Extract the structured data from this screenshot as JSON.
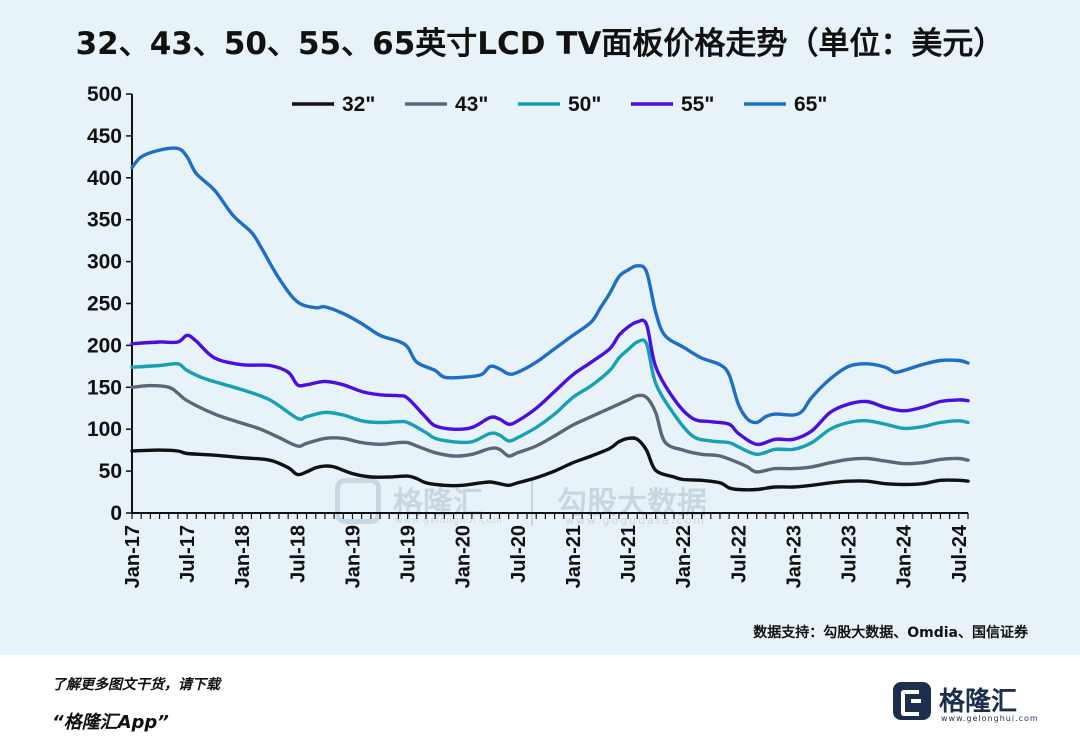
{
  "page": {
    "title": "32、43、50、55、65英寸LCD TV面板价格走势（单位：美元）",
    "source": "数据支持：勾股大数据、Omdia、国信证券",
    "footer_line1": "了解更多图文干货，请下载",
    "footer_line2": "“格隆汇App”",
    "logo_name": "格隆汇",
    "logo_url": "www.gelonghui.com",
    "watermark_name1": "格隆汇",
    "watermark_url1": "www.gelonghui.com",
    "watermark_name2": "勾股大数据",
    "watermark_url2": "www.gogudata.com",
    "background_color": "#e8f3f9"
  },
  "chart_data": {
    "type": "line",
    "title": "32、43、50、55、65英寸LCD TV面板价格走势（单位：美元）",
    "xlabel": "",
    "ylabel": "",
    "ylim": [
      0,
      500
    ],
    "yticks": [
      0,
      50,
      100,
      150,
      200,
      250,
      300,
      350,
      400,
      450,
      500
    ],
    "xticks": [
      "Jan-17",
      "Jul-17",
      "Jan-18",
      "Jul-18",
      "Jan-19",
      "Jul-19",
      "Jan-20",
      "Jul-20",
      "Jan-21",
      "Jul-21",
      "Jan-22",
      "Jul-22",
      "Jan-23",
      "Jul-23",
      "Jan-24",
      "Jul-24"
    ],
    "x_start": "Jan-17",
    "x_end": "Aug-24",
    "grid": false,
    "legend_position": "top",
    "series": [
      {
        "name": "32\"",
        "color": "#111111",
        "points": [
          [
            "Jan-17",
            74
          ],
          [
            "Apr-17",
            75
          ],
          [
            "Jun-17",
            74
          ],
          [
            "Jul-17",
            71
          ],
          [
            "Oct-17",
            69
          ],
          [
            "Jan-18",
            66
          ],
          [
            "Apr-18",
            63
          ],
          [
            "Jun-18",
            54
          ],
          [
            "Jul-18",
            46
          ],
          [
            "Aug-18",
            49
          ],
          [
            "Sep-18",
            54
          ],
          [
            "Oct-18",
            56
          ],
          [
            "Nov-18",
            55
          ],
          [
            "Jan-19",
            47
          ],
          [
            "Mar-19",
            43
          ],
          [
            "May-19",
            43
          ],
          [
            "Jul-19",
            44
          ],
          [
            "Aug-19",
            41
          ],
          [
            "Sep-19",
            36
          ],
          [
            "Nov-19",
            33
          ],
          [
            "Jan-20",
            33
          ],
          [
            "Mar-20",
            36
          ],
          [
            "Apr-20",
            37
          ],
          [
            "May-20",
            35
          ],
          [
            "Jun-20",
            33
          ],
          [
            "Jul-20",
            36
          ],
          [
            "Sep-20",
            42
          ],
          [
            "Nov-20",
            50
          ],
          [
            "Jan-21",
            60
          ],
          [
            "Mar-21",
            68
          ],
          [
            "May-21",
            77
          ],
          [
            "Jun-21",
            85
          ],
          [
            "Jul-21",
            89
          ],
          [
            "Aug-21",
            88
          ],
          [
            "Sep-21",
            75
          ],
          [
            "Oct-21",
            51
          ],
          [
            "Dec-21",
            43
          ],
          [
            "Jan-22",
            40
          ],
          [
            "Mar-22",
            39
          ],
          [
            "May-22",
            36
          ],
          [
            "Jun-22",
            30
          ],
          [
            "Jul-22",
            28
          ],
          [
            "Sep-22",
            28
          ],
          [
            "Nov-22",
            31
          ],
          [
            "Jan-23",
            31
          ],
          [
            "Mar-23",
            33
          ],
          [
            "May-23",
            36
          ],
          [
            "Jul-23",
            38
          ],
          [
            "Sep-23",
            38
          ],
          [
            "Nov-23",
            35
          ],
          [
            "Jan-24",
            34
          ],
          [
            "Mar-24",
            35
          ],
          [
            "May-24",
            39
          ],
          [
            "Jul-24",
            39
          ],
          [
            "Aug-24",
            38
          ]
        ]
      },
      {
        "name": "43\"",
        "color": "#5c6678",
        "points": [
          [
            "Jan-17",
            150
          ],
          [
            "Mar-17",
            152
          ],
          [
            "May-17",
            150
          ],
          [
            "Jun-17",
            143
          ],
          [
            "Jul-17",
            134
          ],
          [
            "Oct-17",
            118
          ],
          [
            "Jan-18",
            107
          ],
          [
            "Mar-18",
            100
          ],
          [
            "May-18",
            90
          ],
          [
            "Jul-18",
            80
          ],
          [
            "Aug-18",
            83
          ],
          [
            "Oct-18",
            89
          ],
          [
            "Dec-18",
            89
          ],
          [
            "Feb-19",
            84
          ],
          [
            "Apr-19",
            82
          ],
          [
            "Jun-19",
            84
          ],
          [
            "Jul-19",
            84
          ],
          [
            "Aug-19",
            80
          ],
          [
            "Oct-19",
            72
          ],
          [
            "Dec-19",
            68
          ],
          [
            "Feb-20",
            70
          ],
          [
            "Apr-20",
            77
          ],
          [
            "May-20",
            76
          ],
          [
            "Jun-20",
            68
          ],
          [
            "Jul-20",
            72
          ],
          [
            "Sep-20",
            80
          ],
          [
            "Nov-20",
            92
          ],
          [
            "Jan-21",
            105
          ],
          [
            "Mar-21",
            115
          ],
          [
            "May-21",
            125
          ],
          [
            "Jul-21",
            135
          ],
          [
            "Aug-21",
            140
          ],
          [
            "Sep-21",
            138
          ],
          [
            "Oct-21",
            120
          ],
          [
            "Nov-21",
            85
          ],
          [
            "Jan-22",
            75
          ],
          [
            "Mar-22",
            70
          ],
          [
            "May-22",
            68
          ],
          [
            "Jul-22",
            60
          ],
          [
            "Aug-22",
            55
          ],
          [
            "Sep-22",
            49
          ],
          [
            "Nov-22",
            53
          ],
          [
            "Jan-23",
            53
          ],
          [
            "Mar-23",
            55
          ],
          [
            "May-23",
            60
          ],
          [
            "Jul-23",
            64
          ],
          [
            "Sep-23",
            65
          ],
          [
            "Nov-23",
            62
          ],
          [
            "Jan-24",
            59
          ],
          [
            "Mar-24",
            60
          ],
          [
            "May-24",
            64
          ],
          [
            "Jul-24",
            65
          ],
          [
            "Aug-24",
            63
          ]
        ]
      },
      {
        "name": "50\"",
        "color": "#16a0b6",
        "points": [
          [
            "Jan-17",
            174
          ],
          [
            "Apr-17",
            176
          ],
          [
            "Jun-17",
            178
          ],
          [
            "Jul-17",
            170
          ],
          [
            "Sep-17",
            160
          ],
          [
            "Jan-18",
            147
          ],
          [
            "Apr-18",
            135
          ],
          [
            "Jul-18",
            113
          ],
          [
            "Aug-18",
            115
          ],
          [
            "Oct-18",
            120
          ],
          [
            "Dec-18",
            117
          ],
          [
            "Feb-19",
            110
          ],
          [
            "Apr-19",
            108
          ],
          [
            "Jun-19",
            109
          ],
          [
            "Jul-19",
            108
          ],
          [
            "Sep-19",
            96
          ],
          [
            "Oct-19",
            89
          ],
          [
            "Dec-19",
            85
          ],
          [
            "Feb-20",
            85
          ],
          [
            "Apr-20",
            95
          ],
          [
            "May-20",
            93
          ],
          [
            "Jun-20",
            86
          ],
          [
            "Jul-20",
            90
          ],
          [
            "Sep-20",
            102
          ],
          [
            "Nov-20",
            118
          ],
          [
            "Jan-21",
            138
          ],
          [
            "Mar-21",
            152
          ],
          [
            "May-21",
            170
          ],
          [
            "Jun-21",
            185
          ],
          [
            "Jul-21",
            195
          ],
          [
            "Aug-21",
            204
          ],
          [
            "Sep-21",
            202
          ],
          [
            "Oct-21",
            155
          ],
          [
            "Dec-21",
            118
          ],
          [
            "Feb-22",
            92
          ],
          [
            "Apr-22",
            86
          ],
          [
            "Jun-22",
            84
          ],
          [
            "Jul-22",
            79
          ],
          [
            "Sep-22",
            70
          ],
          [
            "Nov-22",
            76
          ],
          [
            "Jan-23",
            76
          ],
          [
            "Mar-23",
            84
          ],
          [
            "May-23",
            100
          ],
          [
            "Jul-23",
            108
          ],
          [
            "Sep-23",
            110
          ],
          [
            "Nov-23",
            106
          ],
          [
            "Jan-24",
            101
          ],
          [
            "Mar-24",
            103
          ],
          [
            "May-24",
            108
          ],
          [
            "Jul-24",
            110
          ],
          [
            "Aug-24",
            108
          ]
        ]
      },
      {
        "name": "55\"",
        "color": "#4a0ee0",
        "points": [
          [
            "Jan-17",
            202
          ],
          [
            "Apr-17",
            204
          ],
          [
            "Jun-17",
            204
          ],
          [
            "Jul-17",
            212
          ],
          [
            "Aug-17",
            205
          ],
          [
            "Oct-17",
            185
          ],
          [
            "Jan-18",
            177
          ],
          [
            "Apr-18",
            176
          ],
          [
            "Jun-18",
            168
          ],
          [
            "Jul-18",
            153
          ],
          [
            "Aug-18",
            153
          ],
          [
            "Oct-18",
            157
          ],
          [
            "Dec-18",
            153
          ],
          [
            "Feb-19",
            145
          ],
          [
            "Apr-19",
            141
          ],
          [
            "Jun-19",
            140
          ],
          [
            "Jul-19",
            137
          ],
          [
            "Sep-19",
            114
          ],
          [
            "Oct-19",
            104
          ],
          [
            "Dec-19",
            100
          ],
          [
            "Feb-20",
            102
          ],
          [
            "Apr-20",
            114
          ],
          [
            "May-20",
            112
          ],
          [
            "Jun-20",
            106
          ],
          [
            "Jul-20",
            110
          ],
          [
            "Sep-20",
            125
          ],
          [
            "Nov-20",
            145
          ],
          [
            "Jan-21",
            165
          ],
          [
            "Mar-21",
            180
          ],
          [
            "May-21",
            196
          ],
          [
            "Jun-21",
            212
          ],
          [
            "Jul-21",
            222
          ],
          [
            "Aug-21",
            228
          ],
          [
            "Sep-21",
            225
          ],
          [
            "Oct-21",
            175
          ],
          [
            "Dec-21",
            136
          ],
          [
            "Feb-22",
            113
          ],
          [
            "Apr-22",
            109
          ],
          [
            "Jun-22",
            106
          ],
          [
            "Jul-22",
            95
          ],
          [
            "Sep-22",
            82
          ],
          [
            "Nov-22",
            88
          ],
          [
            "Jan-23",
            88
          ],
          [
            "Mar-23",
            98
          ],
          [
            "May-23",
            120
          ],
          [
            "Jul-23",
            130
          ],
          [
            "Sep-23",
            133
          ],
          [
            "Nov-23",
            126
          ],
          [
            "Jan-24",
            122
          ],
          [
            "Mar-24",
            126
          ],
          [
            "May-24",
            133
          ],
          [
            "Jul-24",
            135
          ],
          [
            "Aug-24",
            134
          ]
        ]
      },
      {
        "name": "65\"",
        "color": "#1e6ec8",
        "points": [
          [
            "Jan-17",
            412
          ],
          [
            "Feb-17",
            425
          ],
          [
            "Apr-17",
            433
          ],
          [
            "Jun-17",
            435
          ],
          [
            "Jul-17",
            425
          ],
          [
            "Aug-17",
            405
          ],
          [
            "Oct-17",
            385
          ],
          [
            "Dec-17",
            355
          ],
          [
            "Feb-18",
            335
          ],
          [
            "Mar-18",
            318
          ],
          [
            "May-18",
            280
          ],
          [
            "Jul-18",
            252
          ],
          [
            "Sep-18",
            245
          ],
          [
            "Oct-18",
            246
          ],
          [
            "Dec-18",
            238
          ],
          [
            "Feb-19",
            226
          ],
          [
            "Apr-19",
            212
          ],
          [
            "Jun-19",
            205
          ],
          [
            "Jul-19",
            198
          ],
          [
            "Aug-19",
            180
          ],
          [
            "Oct-19",
            170
          ],
          [
            "Nov-19",
            162
          ],
          [
            "Jan-20",
            162
          ],
          [
            "Mar-20",
            165
          ],
          [
            "Apr-20",
            175
          ],
          [
            "May-20",
            172
          ],
          [
            "Jun-20",
            166
          ],
          [
            "Jul-20",
            168
          ],
          [
            "Sep-20",
            180
          ],
          [
            "Nov-20",
            196
          ],
          [
            "Jan-21",
            212
          ],
          [
            "Mar-21",
            228
          ],
          [
            "Apr-21",
            245
          ],
          [
            "May-21",
            262
          ],
          [
            "Jun-21",
            282
          ],
          [
            "Jul-21",
            290
          ],
          [
            "Aug-21",
            295
          ],
          [
            "Sep-21",
            288
          ],
          [
            "Oct-21",
            240
          ],
          [
            "Nov-21",
            212
          ],
          [
            "Jan-22",
            198
          ],
          [
            "Mar-22",
            185
          ],
          [
            "May-22",
            177
          ],
          [
            "Jun-22",
            165
          ],
          [
            "Jul-22",
            130
          ],
          [
            "Aug-22",
            112
          ],
          [
            "Sep-22",
            108
          ],
          [
            "Oct-22",
            115
          ],
          [
            "Nov-22",
            118
          ],
          [
            "Jan-23",
            117
          ],
          [
            "Feb-23",
            122
          ],
          [
            "Mar-23",
            138
          ],
          [
            "May-23",
            160
          ],
          [
            "Jul-23",
            175
          ],
          [
            "Sep-23",
            178
          ],
          [
            "Nov-23",
            174
          ],
          [
            "Dec-23",
            168
          ],
          [
            "Jan-24",
            170
          ],
          [
            "Mar-24",
            177
          ],
          [
            "May-24",
            182
          ],
          [
            "Jul-24",
            182
          ],
          [
            "Aug-24",
            179
          ]
        ]
      }
    ]
  }
}
